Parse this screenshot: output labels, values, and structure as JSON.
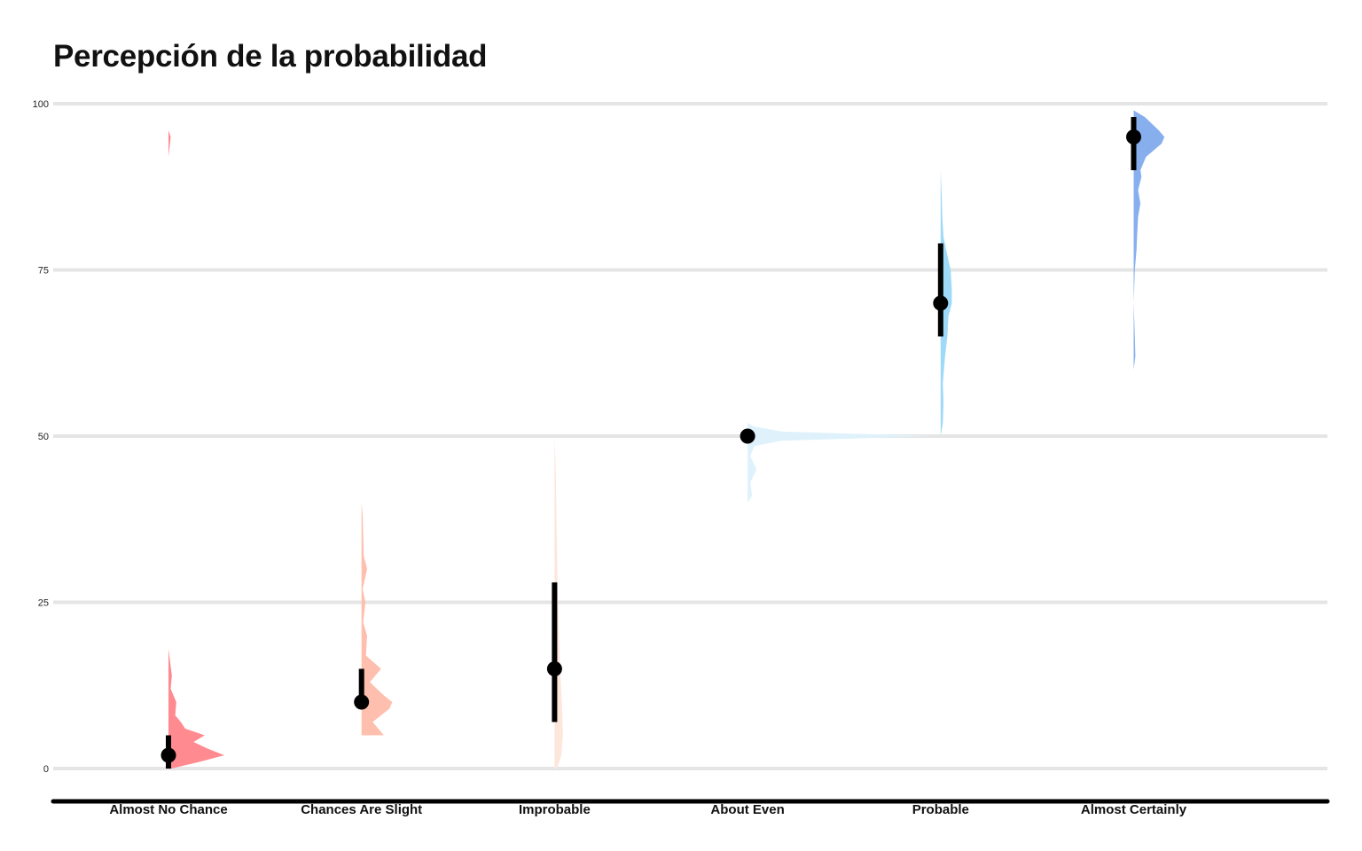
{
  "chart_data": {
    "type": "raincloud",
    "title": "Percepción de la probabilidad",
    "xlabel": "",
    "ylabel": "",
    "ylim": [
      0,
      100
    ],
    "yticks": [
      0,
      25,
      50,
      75,
      100
    ],
    "grid": true,
    "legend": "none",
    "categories": [
      "Almost No Chance",
      "Chances Are Slight",
      "Improbable",
      "About Even",
      "Probable",
      "Almost Certainly"
    ],
    "series": [
      {
        "category": "Almost No Chance",
        "color": "#ff8a8f",
        "median": 2,
        "interval": [
          0,
          5
        ],
        "density": [
          [
            0,
            0.05
          ],
          [
            1,
            0.55
          ],
          [
            2,
            1.0
          ],
          [
            3,
            0.7
          ],
          [
            4,
            0.45
          ],
          [
            5,
            0.65
          ],
          [
            6,
            0.3
          ],
          [
            7,
            0.22
          ],
          [
            8,
            0.12
          ],
          [
            10,
            0.14
          ],
          [
            12,
            0.04
          ],
          [
            14,
            0.06
          ],
          [
            16,
            0.03
          ],
          [
            18,
            0.0
          ],
          [
            92,
            0.0
          ],
          [
            95,
            0.04
          ],
          [
            96,
            0.0
          ]
        ]
      },
      {
        "category": "Chances Are Slight",
        "color": "#ffbfae",
        "median": 10,
        "interval": [
          10,
          15
        ],
        "density": [
          [
            5,
            0.4
          ],
          [
            7,
            0.2
          ],
          [
            9,
            0.5
          ],
          [
            10,
            0.55
          ],
          [
            11,
            0.4
          ],
          [
            13,
            0.15
          ],
          [
            15,
            0.35
          ],
          [
            17,
            0.08
          ],
          [
            20,
            0.1
          ],
          [
            22,
            0.03
          ],
          [
            25,
            0.07
          ],
          [
            27,
            0.02
          ],
          [
            30,
            0.1
          ],
          [
            32,
            0.04
          ],
          [
            35,
            0.03
          ],
          [
            38,
            0.02
          ],
          [
            40,
            0.0
          ]
        ]
      },
      {
        "category": "Improbable",
        "color": "#fde6dc",
        "median": 15,
        "interval": [
          7,
          28
        ],
        "density": [
          [
            0,
            0.04
          ],
          [
            2,
            0.12
          ],
          [
            5,
            0.15
          ],
          [
            10,
            0.13
          ],
          [
            15,
            0.1
          ],
          [
            20,
            0.08
          ],
          [
            25,
            0.06
          ],
          [
            30,
            0.05
          ],
          [
            35,
            0.04
          ],
          [
            40,
            0.03
          ],
          [
            45,
            0.02
          ],
          [
            50,
            0.0
          ]
        ]
      },
      {
        "category": "About Even",
        "color": "#dff2fc",
        "median": 50,
        "interval": [
          50,
          50
        ],
        "density": [
          [
            40,
            0.0
          ],
          [
            41,
            0.08
          ],
          [
            43,
            0.05
          ],
          [
            45,
            0.16
          ],
          [
            47,
            0.05
          ],
          [
            48.5,
            0.12
          ],
          [
            49.3,
            0.6
          ],
          [
            50,
            3.3
          ],
          [
            50.7,
            0.6
          ],
          [
            51.5,
            0.1
          ],
          [
            52,
            0.0
          ]
        ]
      },
      {
        "category": "Probable",
        "color": "#9fd9fa",
        "median": 70,
        "interval": [
          65,
          79
        ],
        "density": [
          [
            50,
            0.0
          ],
          [
            52,
            0.04
          ],
          [
            55,
            0.05
          ],
          [
            58,
            0.04
          ],
          [
            62,
            0.08
          ],
          [
            65,
            0.12
          ],
          [
            68,
            0.14
          ],
          [
            70,
            0.2
          ],
          [
            72,
            0.2
          ],
          [
            75,
            0.18
          ],
          [
            78,
            0.1
          ],
          [
            80,
            0.05
          ],
          [
            83,
            0.03
          ],
          [
            86,
            0.02
          ],
          [
            90,
            0.0
          ]
        ]
      },
      {
        "category": "Almost Certainly",
        "color": "#87afee",
        "median": 95,
        "interval": [
          90,
          98
        ],
        "density": [
          [
            60,
            0.0
          ],
          [
            62,
            0.03
          ],
          [
            65,
            0.02
          ],
          [
            70,
            0.0
          ],
          [
            75,
            0.02
          ],
          [
            78,
            0.05
          ],
          [
            80,
            0.06
          ],
          [
            83,
            0.08
          ],
          [
            85,
            0.12
          ],
          [
            87,
            0.08
          ],
          [
            89,
            0.14
          ],
          [
            90,
            0.12
          ],
          [
            92,
            0.22
          ],
          [
            94,
            0.5
          ],
          [
            95,
            0.55
          ],
          [
            96,
            0.45
          ],
          [
            98,
            0.2
          ],
          [
            99,
            0.0
          ]
        ]
      }
    ]
  }
}
